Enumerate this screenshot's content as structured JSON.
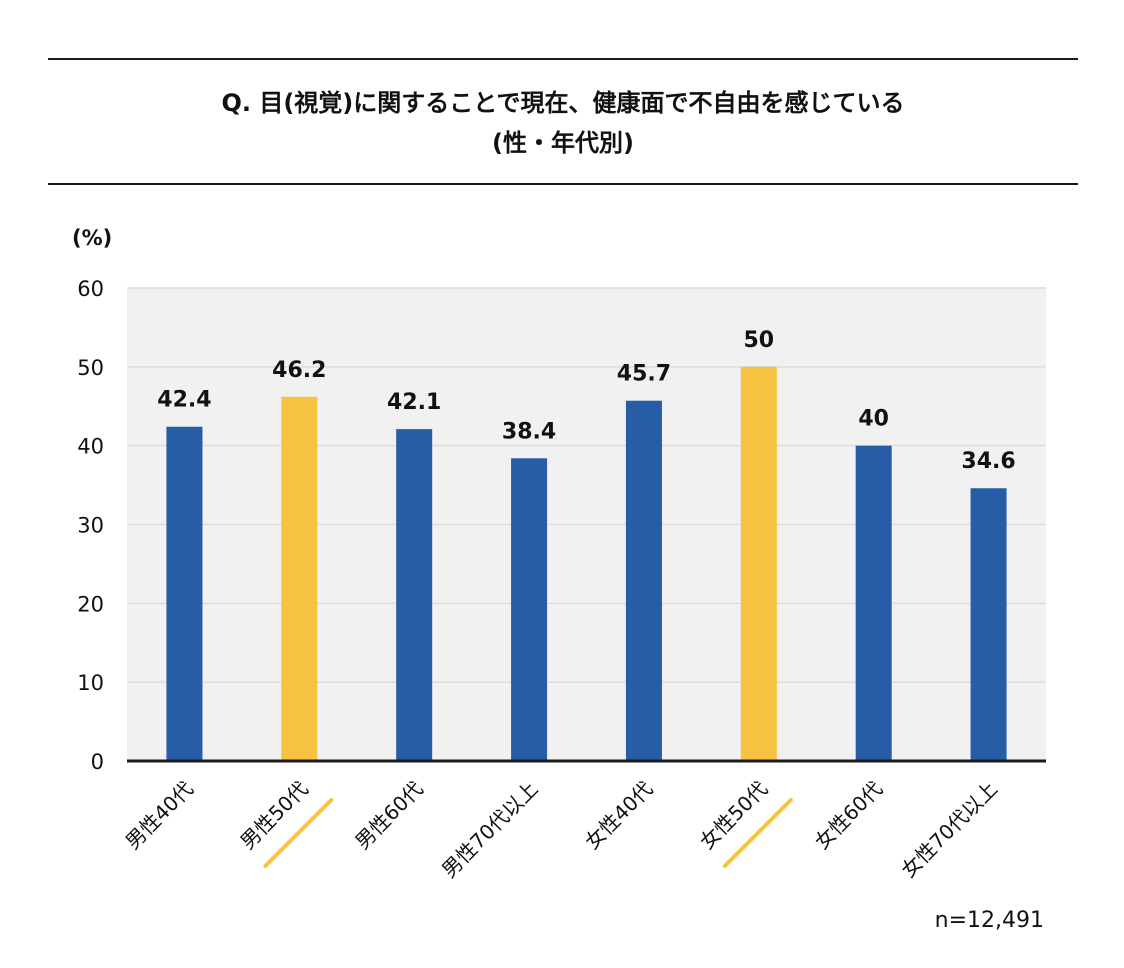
{
  "header": {
    "title_line1": "Q. 目(視覚)に関することで現在、健康面で不自由を感じている",
    "title_line2": "(性・年代別)"
  },
  "footnote": "n=12,491",
  "colors": {
    "blue": "#265da6",
    "yellow": "#f5c242",
    "plot_bg": "#f1f1f1",
    "grid": "#dcdcdc",
    "axis": "#1a1a1a"
  },
  "chart_data": {
    "type": "bar",
    "ylabel": "(%)",
    "ylim": [
      0,
      60
    ],
    "yticks": [
      0,
      10,
      20,
      30,
      40,
      50,
      60
    ],
    "grid": true,
    "categories": [
      "男性40代",
      "男性50代",
      "男性60代",
      "男性70代以上",
      "女性40代",
      "女性50代",
      "女性60代",
      "女性70代以上"
    ],
    "values": [
      42.4,
      46.2,
      42.1,
      38.4,
      45.7,
      50,
      40,
      34.6
    ],
    "value_labels": [
      "42.4",
      "46.2",
      "42.1",
      "38.4",
      "45.7",
      "50",
      "40",
      "34.6"
    ],
    "highlight": [
      false,
      true,
      false,
      false,
      false,
      true,
      false,
      false
    ]
  }
}
